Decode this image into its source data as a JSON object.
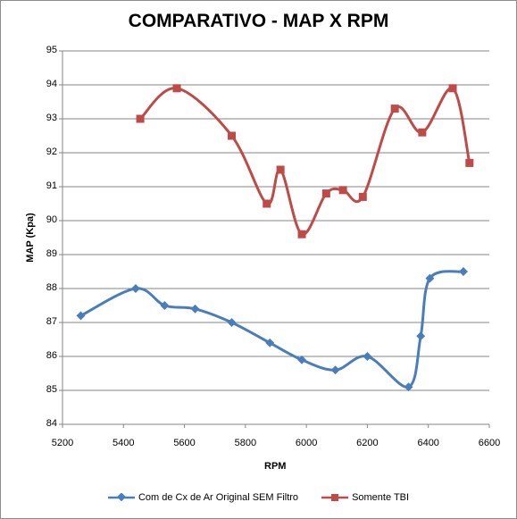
{
  "chart_data": {
    "type": "line",
    "title": "COMPARATIVO - MAP X RPM",
    "xlabel": "RPM",
    "ylabel": "MAP (Kpa)",
    "xlim": [
      5200,
      6600
    ],
    "ylim": [
      84,
      95
    ],
    "xticks": [
      5200,
      5400,
      5600,
      5800,
      6000,
      6200,
      6400,
      6600
    ],
    "yticks": [
      84,
      85,
      86,
      87,
      88,
      89,
      90,
      91,
      92,
      93,
      94,
      95
    ],
    "grid": "horizontal",
    "legend_position": "bottom",
    "series": [
      {
        "name": "Com de Cx de Ar Original SEM Filtro",
        "color": "#4a7ebb",
        "marker": "diamond",
        "x": [
          5260,
          5440,
          5535,
          5635,
          5755,
          5880,
          5985,
          6095,
          6200,
          6335,
          6375,
          6405,
          6515
        ],
        "y": [
          87.2,
          88.0,
          87.5,
          87.4,
          87.0,
          86.4,
          85.9,
          85.6,
          86.0,
          85.1,
          86.6,
          88.3,
          88.5
        ]
      },
      {
        "name": "Somente TBI",
        "color": "#be4b48",
        "marker": "square",
        "x": [
          5455,
          5575,
          5755,
          5870,
          5915,
          5985,
          6065,
          6120,
          6185,
          6290,
          6380,
          6480,
          6535
        ],
        "y": [
          93.0,
          93.9,
          92.5,
          90.5,
          91.5,
          89.6,
          90.8,
          90.9,
          90.7,
          93.3,
          92.6,
          93.9,
          91.7
        ]
      }
    ]
  }
}
